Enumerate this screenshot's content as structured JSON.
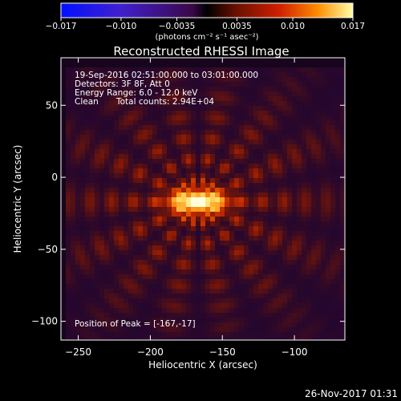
{
  "chart_data": {
    "type": "heatmap",
    "title": "Reconstructed RHESSI Image",
    "xlabel": "Heliocentric X (arcsec)",
    "ylabel": "Heliocentric Y (arcsec)",
    "xlim": [
      -262,
      -65
    ],
    "ylim": [
      -113,
      83
    ],
    "xticks": [
      -250,
      -200,
      -150,
      -100
    ],
    "yticks": [
      50,
      0,
      -50,
      -100
    ],
    "x_tick_labels": [
      "−250",
      "−200",
      "−150",
      "−100"
    ],
    "y_tick_labels": [
      "50",
      "0",
      "−50",
      "−100"
    ],
    "peak": {
      "x": -167,
      "y": -17
    },
    "colorbar": {
      "range": [
        -0.017,
        0.017
      ],
      "ticks": [
        -0.017,
        -0.01,
        -0.0035,
        0.0035,
        0.01,
        0.017
      ],
      "tick_labels": [
        "−0.017",
        "−0.010",
        "−0.0035",
        "0.0035",
        "0.010",
        "0.017"
      ],
      "unit_label": "(photons cm⁻² s⁻¹ asec⁻²)"
    },
    "annotations": {
      "time_range": "19-Sep-2016 02:51:00.000 to 03:01:00.000",
      "detectors": "Detectors: 3F 8F, Att 0",
      "energy": "Energy Range: 6.0 - 12.0 keV",
      "method": "Clean",
      "counts": "Total counts: 2.94E+04",
      "peak_position": "Position of Peak = [-167,-17]"
    },
    "timestamp": "26-Nov-2017 01:31"
  }
}
